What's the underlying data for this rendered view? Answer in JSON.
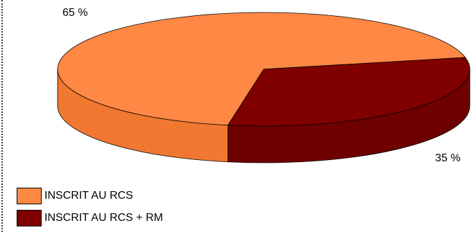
{
  "chart_data": {
    "type": "pie",
    "style": "3d",
    "slices": [
      {
        "label": "INSCRIT AU RCS",
        "value": 65,
        "value_label": "65 %",
        "color": "#FF8844",
        "side_color": "#F07830"
      },
      {
        "label": "INSCRIT AU RCS + RM",
        "value": 35,
        "value_label": "35 %",
        "color": "#800000",
        "side_color": "#6E0000"
      }
    ],
    "legend_position": "bottom-left"
  }
}
